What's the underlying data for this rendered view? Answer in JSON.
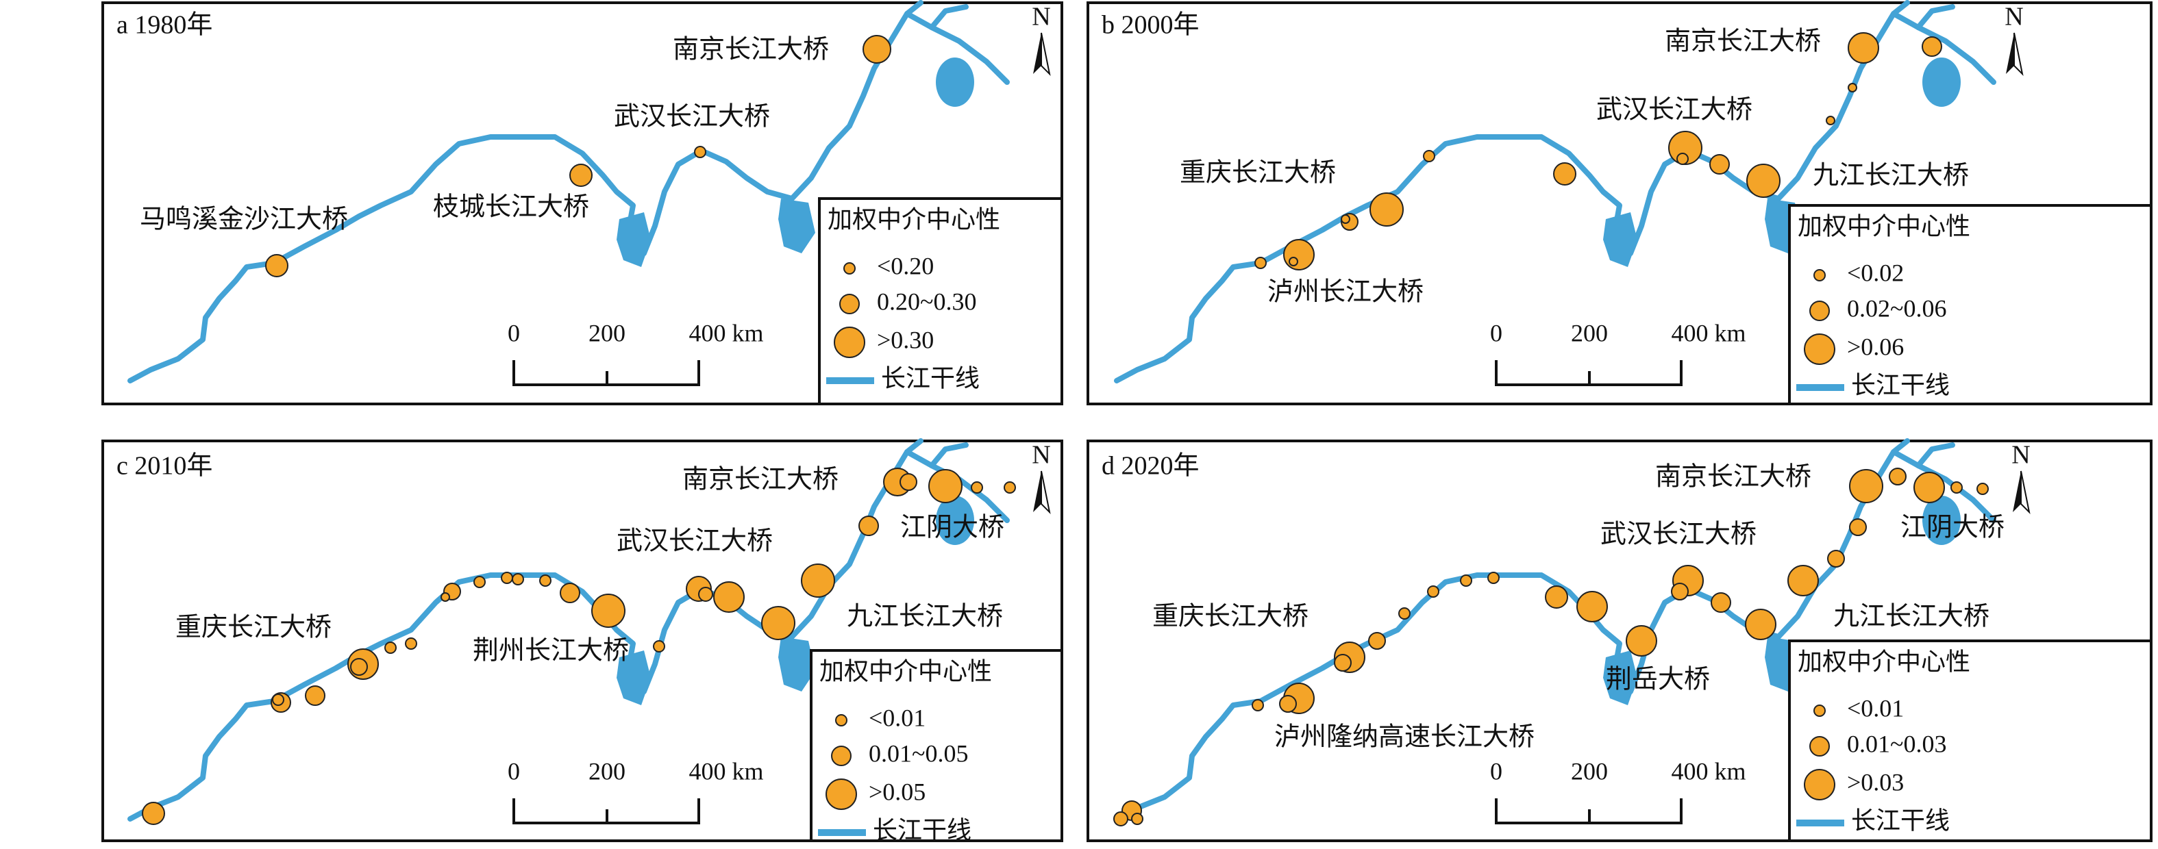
{
  "panels": [
    {
      "label": "a 1980年",
      "north": "N",
      "bridges": [
        "南京长江大桥",
        "武汉长江大桥",
        "枝城长江大桥",
        "马鸣溪金沙江大桥"
      ],
      "legend": {
        "title": "加权中介中心性",
        "items": [
          "<0.20",
          "0.20~0.30",
          ">0.30"
        ],
        "line": "长江干线"
      },
      "scale": [
        "0",
        "200",
        "400 km"
      ]
    },
    {
      "label": "b 2000年",
      "north": "N",
      "bridges": [
        "南京长江大桥",
        "武汉长江大桥",
        "九江长江大桥",
        "重庆长江大桥",
        "泸州长江大桥"
      ],
      "legend": {
        "title": "加权中介中心性",
        "items": [
          "<0.02",
          "0.02~0.06",
          ">0.06"
        ],
        "line": "长江干线"
      },
      "scale": [
        "0",
        "200",
        "400 km"
      ]
    },
    {
      "label": "c 2010年",
      "north": "N",
      "bridges": [
        "南京长江大桥",
        "江阴大桥",
        "武汉长江大桥",
        "九江长江大桥",
        "重庆长江大桥",
        "荆州长江大桥"
      ],
      "legend": {
        "title": "加权中介中心性",
        "items": [
          "<0.01",
          "0.01~0.05",
          ">0.05"
        ],
        "line": "长江干线"
      },
      "scale": [
        "0",
        "200",
        "400 km"
      ]
    },
    {
      "label": "d 2020年",
      "north": "N",
      "bridges": [
        "南京长江大桥",
        "江阴大桥",
        "武汉长江大桥",
        "九江长江大桥",
        "重庆长江大桥",
        "荆岳大桥",
        "泸州隆纳高速长江大桥"
      ],
      "legend": {
        "title": "加权中介中心性",
        "items": [
          "<0.01",
          "0.01~0.03",
          ">0.03"
        ],
        "line": "长江干线"
      },
      "scale": [
        "0",
        "200",
        "400 km"
      ]
    }
  ]
}
